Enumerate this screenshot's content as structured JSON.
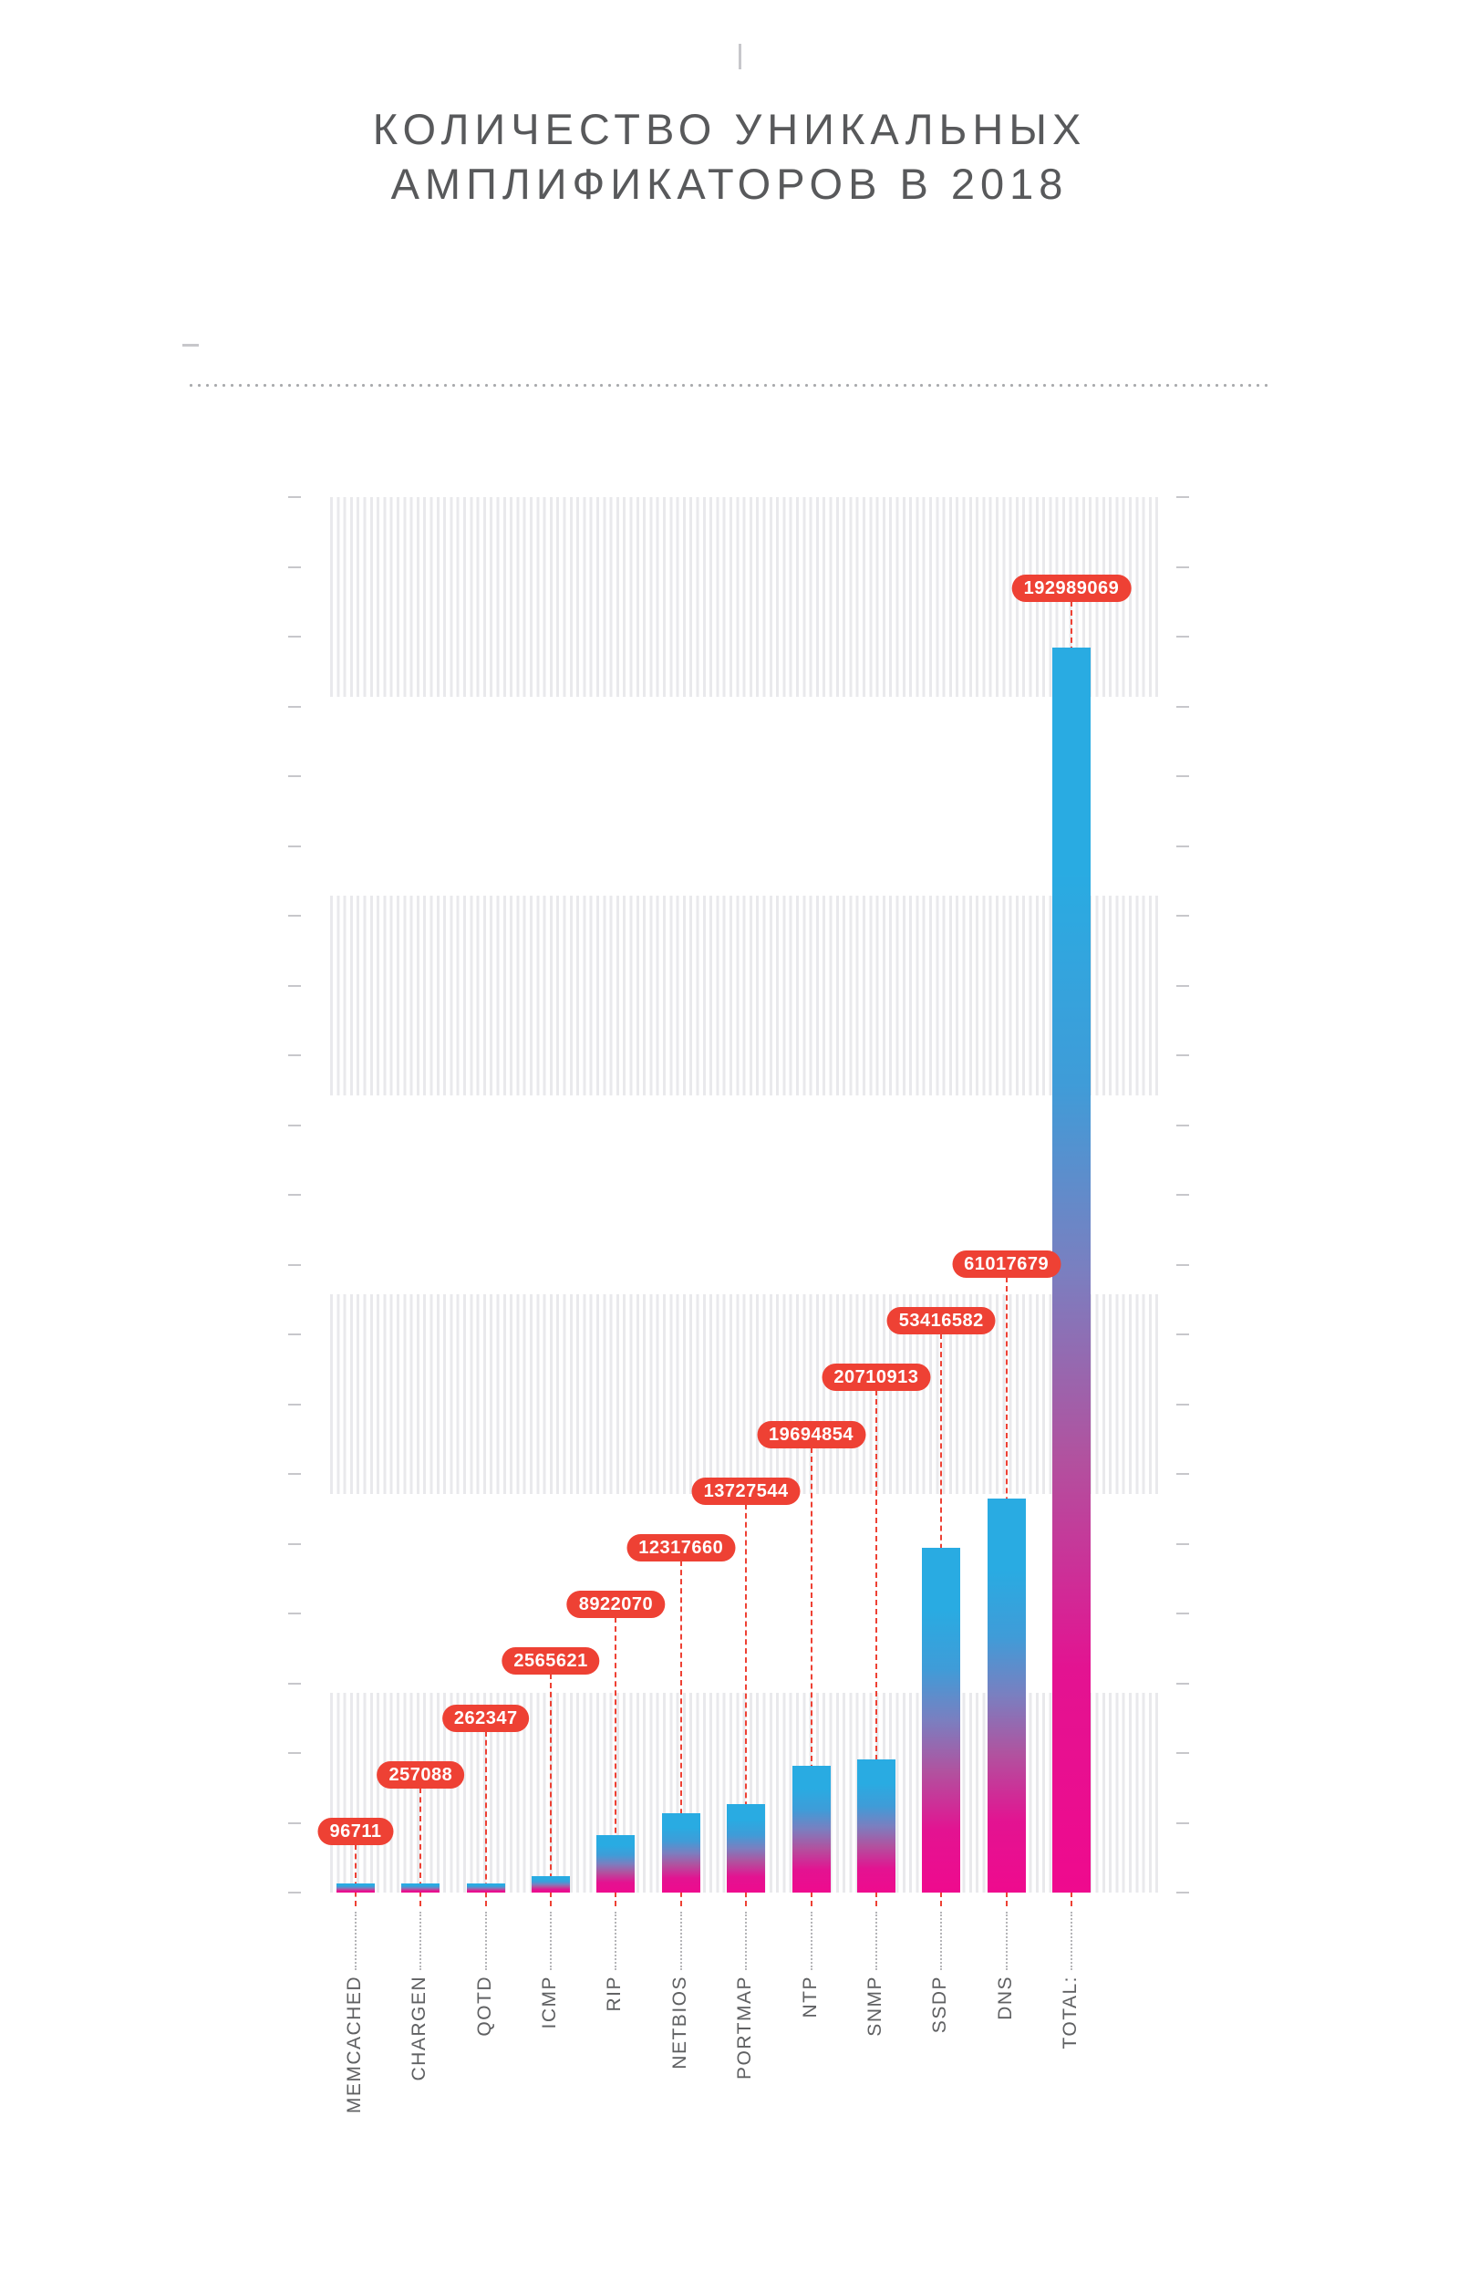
{
  "title": {
    "line1": "КОЛИЧЕСТВО УНИКАЛЬНЫХ",
    "line2": "АМПЛИФИКАТОРОВ В 2018"
  },
  "chart_data": {
    "type": "bar",
    "title": "КОЛИЧЕСТВО УНИКАЛЬНЫХ АМПЛИФИКАТОРОВ В 2018",
    "categories": [
      "MEMCACHED",
      "CHARGEN",
      "QOTD",
      "ICMP",
      "RIP",
      "NETBIOS",
      "PORTMAP",
      "NTP",
      "SNMP",
      "SSDP",
      "DNS",
      "TOTAL:"
    ],
    "values": [
      96711,
      257088,
      262347,
      2565621,
      8922070,
      12317660,
      13727544,
      19694854,
      20710913,
      53416582,
      61017679,
      192989069
    ],
    "xlabel": "",
    "ylabel": "",
    "ylim": [
      0,
      192989069
    ],
    "grid": "striped-horizontal-bands",
    "legend_position": "none",
    "value_label_style": "red-pill-badges-with-dashed-leaders",
    "colors": {
      "badge_background": "#ee4134",
      "badge_text": "#ffffff",
      "leader_dashed_red": "#ee4134",
      "bar_gradient_bottom": "#ec0c8c",
      "bar_gradient_mid": "#7a7fc0",
      "bar_gradient_top": "#29abe2",
      "stripe_gray": "#e9e9ec",
      "tick_gray": "#c7c7cb",
      "title_text": "#58595b",
      "category_text": "#5f6062"
    }
  }
}
